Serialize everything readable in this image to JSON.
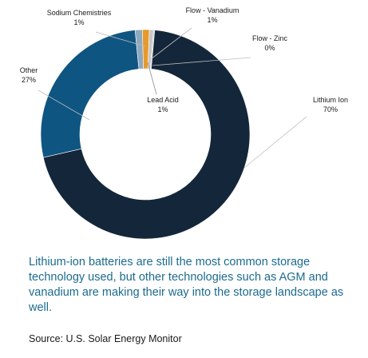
{
  "chart_data": {
    "type": "pie",
    "donut": true,
    "categories": [
      "Lithium Ion",
      "Other",
      "Sodium Chemistries",
      "Lead Acid",
      "Flow - Vanadium",
      "Flow - Zinc"
    ],
    "values": [
      70,
      27,
      1,
      1,
      1,
      0
    ],
    "value_labels": [
      "70%",
      "27%",
      "1%",
      "1%",
      "1%",
      "0%"
    ],
    "colors": [
      "#14263a",
      "#0f5582",
      "#8ca9c0",
      "#e79a2b",
      "#c7c7c7",
      "#c7c7c7"
    ]
  },
  "caption": "Lithium-ion batteries are still the most common storage technology used, but other technologies such as AGM and vanadium are making their way into the storage landscape as well.",
  "source": "Source: U.S. Solar Energy Monitor"
}
